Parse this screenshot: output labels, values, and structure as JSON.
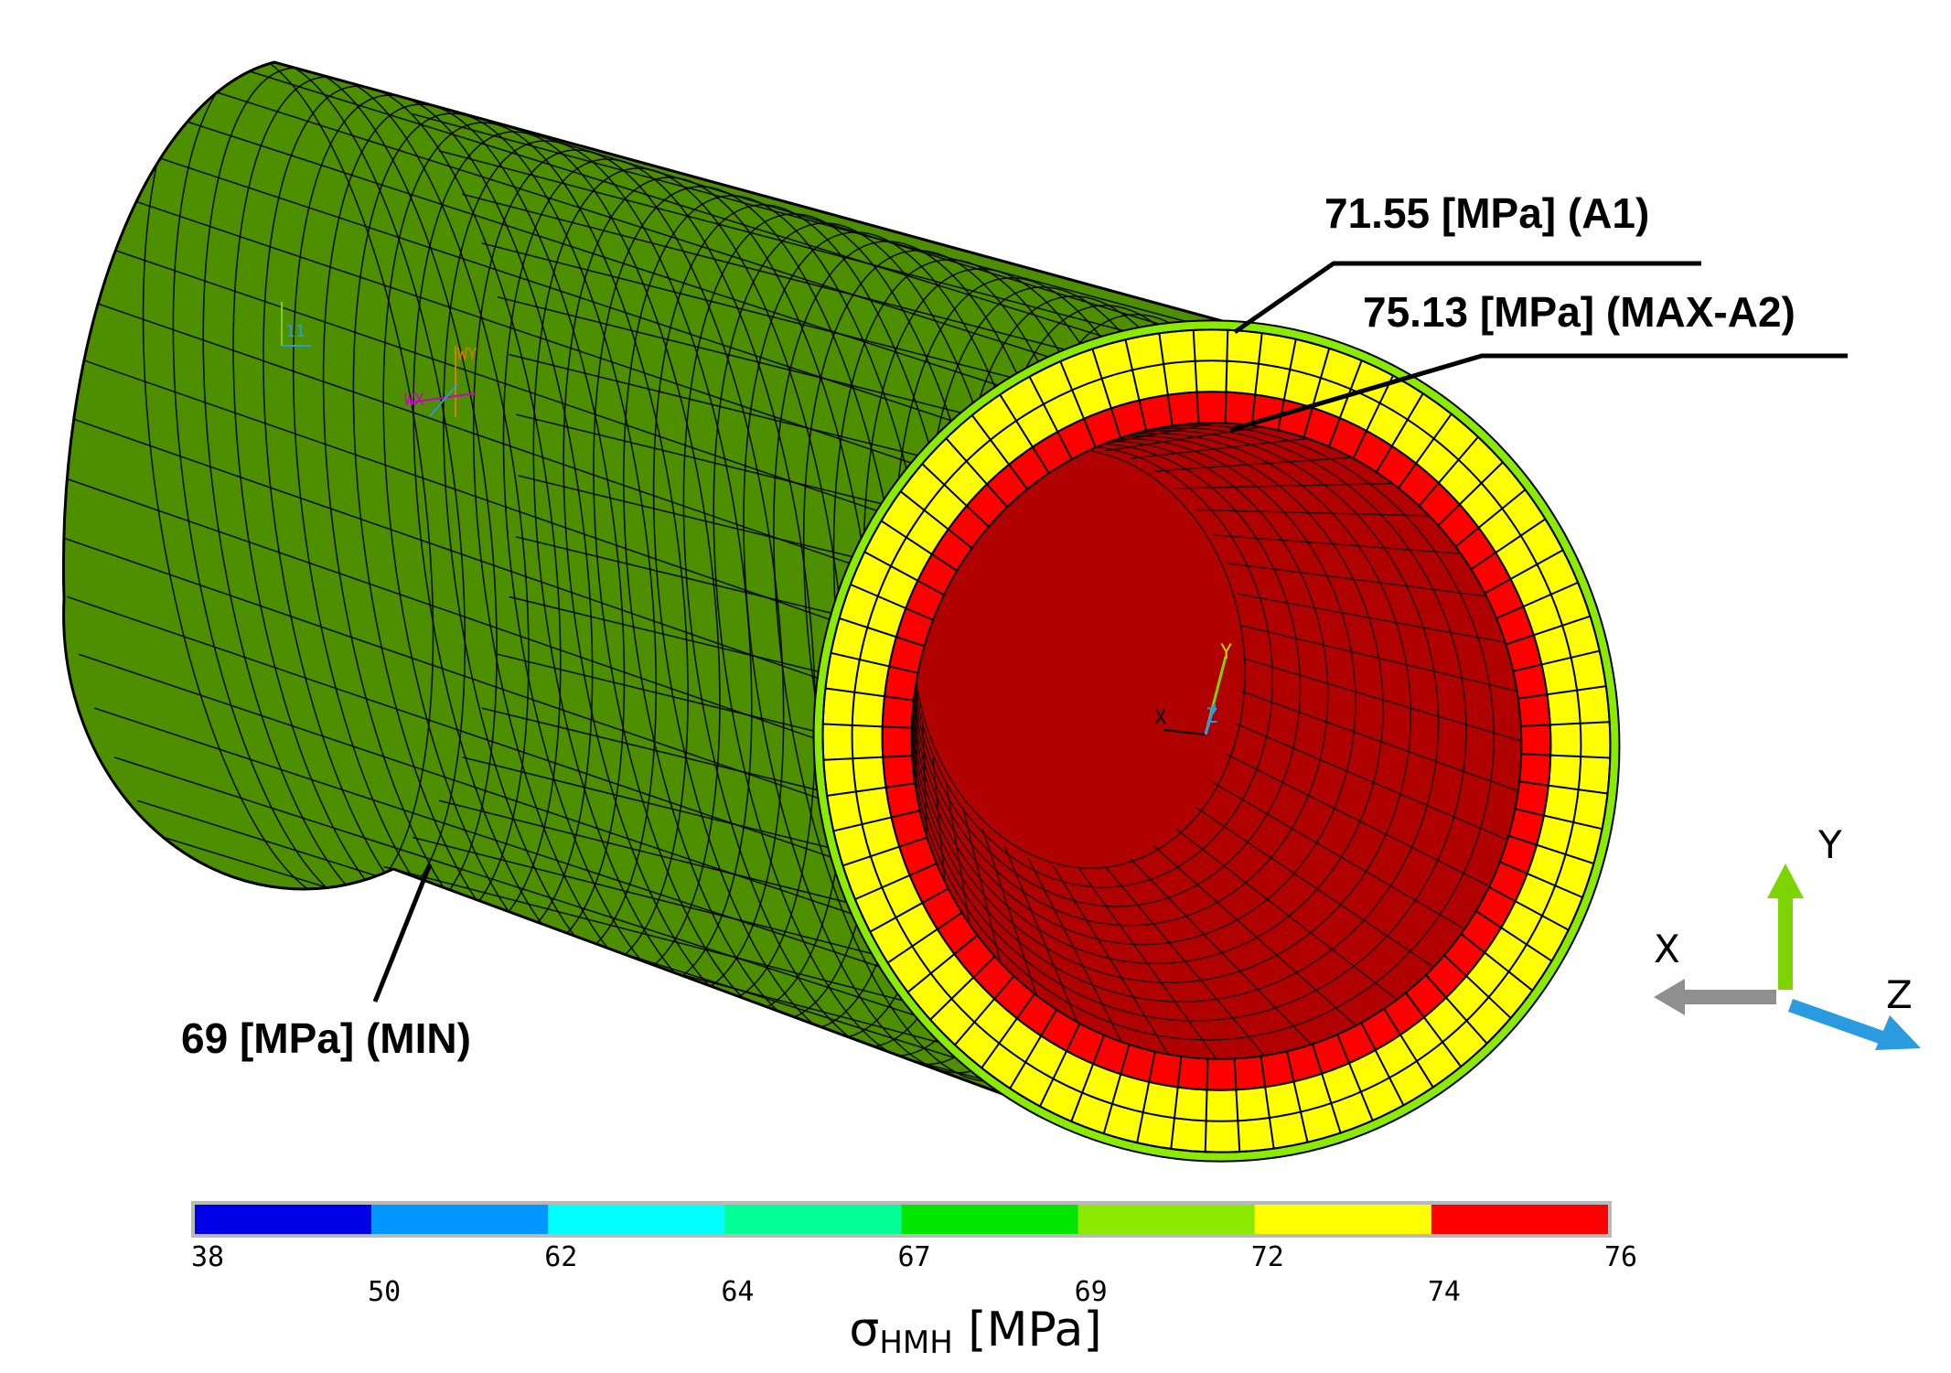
{
  "annotations": {
    "a1": "71.55 [MPa] (A1)",
    "max": "75.13 [MPa] (MAX-A2)",
    "min": "69 [MPa] (MIN)"
  },
  "legend": {
    "title_main": "σ",
    "title_sub": "HMH",
    "title_unit": " [MPa]",
    "ticks": [
      "38",
      "50",
      "62",
      "64",
      "67",
      "69",
      "72",
      "74",
      "76"
    ],
    "colors": [
      "#0000e6",
      "#0095ff",
      "#00ffff",
      "#00ff95",
      "#00e600",
      "#8aeb00",
      "#ffff00",
      "#ff0000"
    ]
  },
  "axes": {
    "x": "X",
    "y": "Y",
    "z": "Z"
  },
  "inner_triad": {
    "x": "X",
    "y": "Y",
    "z": "Z"
  },
  "workplane_triad": {
    "w_label": "WY",
    "wp_label": "WX",
    "num_label": "11"
  },
  "colors": {
    "outer_surface": "#4e8f00",
    "ring_outer": "#8aeb00",
    "ring_mid": "#ffff00",
    "ring_inner": "#ff0000",
    "bore": "#b00000",
    "axis_x": "#8f8f8f",
    "axis_y": "#7dd400",
    "axis_z": "#2b9be0"
  }
}
